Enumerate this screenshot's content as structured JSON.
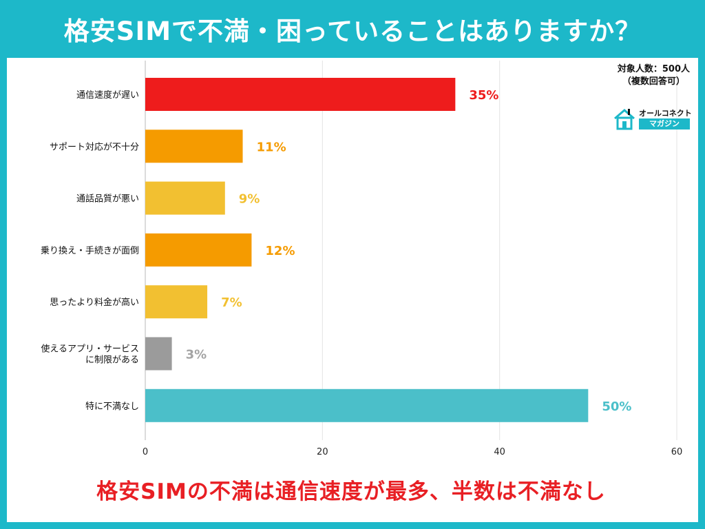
{
  "title": "格安SIMで不満・困っていることはありますか？",
  "note": {
    "line1": "対象人数：500人",
    "line2": "（複数回答可）"
  },
  "logo": {
    "top": "オールコネクト",
    "bottom": "マガジン"
  },
  "banner": "格安SIMの不満は通信速度が最多、半数は不満なし",
  "chart_data": {
    "type": "bar",
    "orientation": "horizontal",
    "categories": [
      "通信速度が遅い",
      "サポート対応が不十分",
      "通話品質が悪い",
      "乗り換え・手続きが面倒",
      "思ったより料金が高い",
      "使えるアプリ・サービス\nに制限がある",
      "特に不満なし"
    ],
    "values": [
      35,
      11,
      9,
      12,
      7,
      3,
      50
    ],
    "value_labels": [
      "35%",
      "11%",
      "9%",
      "12%",
      "7%",
      "3%",
      "50%"
    ],
    "colors": [
      "#ee1c1c",
      "#f59b00",
      "#f2c031",
      "#f59b00",
      "#f2c031",
      "#9b9b9b",
      "#4bbfc9"
    ],
    "label_colors": [
      "#ee1c1c",
      "#f59b00",
      "#f2c031",
      "#f59b00",
      "#f2c031",
      "#a4a4a4",
      "#4bbfc9"
    ],
    "xlim": [
      0,
      60
    ],
    "xticks": [
      0,
      20,
      40,
      60
    ],
    "grid": true
  }
}
